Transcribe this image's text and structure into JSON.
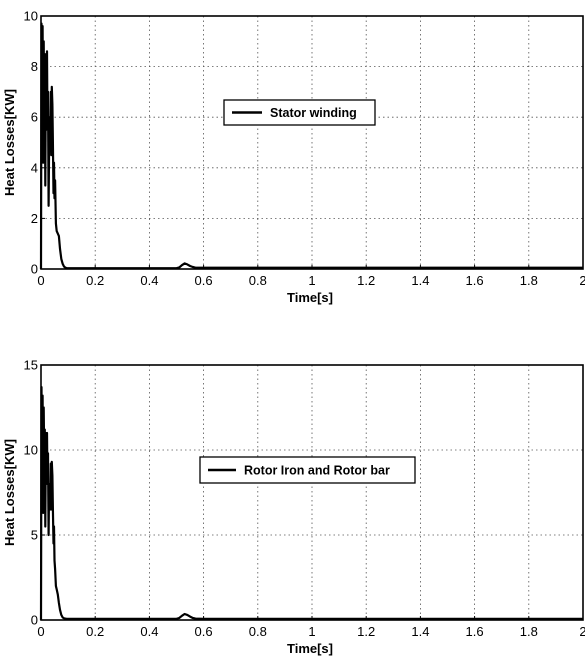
{
  "chart_data": [
    {
      "type": "line",
      "xlabel": "Time[s]",
      "ylabel": "Heat Losses[KW]",
      "xlim": [
        0,
        2
      ],
      "ylim": [
        0,
        10
      ],
      "xticks": [
        0,
        0.2,
        0.4,
        0.6,
        0.8,
        1,
        1.2,
        1.4,
        1.6,
        1.8,
        2
      ],
      "xtick_labels": [
        "0",
        "0.2",
        "0.4",
        "0.6",
        "0.8",
        "1",
        "1.2",
        "1.4",
        "1.6",
        "1.8",
        "2"
      ],
      "yticks": [
        0,
        2,
        4,
        6,
        8,
        10
      ],
      "ytick_labels": [
        "0",
        "2",
        "4",
        "6",
        "8",
        "10"
      ],
      "grid": true,
      "legend_position": "center",
      "series": [
        {
          "name": "Stator winding",
          "color": "#000000",
          "x": [
            0,
            0.002,
            0.004,
            0.006,
            0.008,
            0.01,
            0.012,
            0.014,
            0.016,
            0.018,
            0.02,
            0.022,
            0.024,
            0.026,
            0.028,
            0.03,
            0.032,
            0.034,
            0.036,
            0.038,
            0.04,
            0.042,
            0.044,
            0.046,
            0.048,
            0.05,
            0.052,
            0.055,
            0.058,
            0.062,
            0.066,
            0.07,
            0.075,
            0.08,
            0.085,
            0.09,
            0.095,
            0.1,
            0.2,
            0.4,
            0.5,
            0.51,
            0.52,
            0.53,
            0.54,
            0.55,
            0.56,
            0.57,
            0.6,
            0.8,
            1.0,
            1.2,
            1.4,
            1.6,
            1.8,
            2.0
          ],
          "y": [
            0,
            9.7,
            5,
            9.6,
            4.2,
            9.0,
            6,
            8.5,
            3.3,
            8.0,
            6.5,
            8.6,
            5.5,
            7.0,
            2.5,
            4.8,
            6.0,
            4.8,
            7.0,
            4.5,
            7.2,
            6.5,
            5.0,
            3.0,
            4.2,
            2.8,
            3.5,
            1.8,
            1.5,
            1.4,
            1.3,
            0.8,
            0.4,
            0.2,
            0.1,
            0.05,
            0.03,
            0.03,
            0.03,
            0.03,
            0.03,
            0.06,
            0.15,
            0.22,
            0.18,
            0.12,
            0.08,
            0.05,
            0.05,
            0.05,
            0.05,
            0.05,
            0.05,
            0.05,
            0.05,
            0.05
          ]
        }
      ]
    },
    {
      "type": "line",
      "xlabel": "Time[s]",
      "ylabel": "Heat Losses[KW]",
      "xlim": [
        0,
        2
      ],
      "ylim": [
        0,
        15
      ],
      "xticks": [
        0,
        0.2,
        0.4,
        0.6,
        0.8,
        1,
        1.2,
        1.4,
        1.6,
        1.8,
        2
      ],
      "xtick_labels": [
        "0",
        "0.2",
        "0.4",
        "0.6",
        "0.8",
        "1",
        "1.2",
        "1.4",
        "1.6",
        "1.8",
        "2"
      ],
      "yticks": [
        0,
        5,
        10,
        15
      ],
      "ytick_labels": [
        "0",
        "5",
        "10",
        "15"
      ],
      "grid": true,
      "legend_position": "center",
      "series": [
        {
          "name": "Rotor Iron and Rotor bar",
          "color": "#000000",
          "x": [
            0,
            0.002,
            0.004,
            0.006,
            0.008,
            0.01,
            0.012,
            0.014,
            0.016,
            0.018,
            0.02,
            0.022,
            0.024,
            0.026,
            0.028,
            0.03,
            0.032,
            0.034,
            0.036,
            0.038,
            0.04,
            0.042,
            0.044,
            0.046,
            0.048,
            0.05,
            0.052,
            0.055,
            0.058,
            0.062,
            0.066,
            0.07,
            0.075,
            0.08,
            0.085,
            0.09,
            0.095,
            0.1,
            0.2,
            0.4,
            0.5,
            0.51,
            0.52,
            0.53,
            0.54,
            0.55,
            0.56,
            0.57,
            0.6,
            0.8,
            1.0,
            1.2,
            1.4,
            1.6,
            1.8,
            2.0
          ],
          "y": [
            0,
            13.7,
            8,
            13.2,
            6.3,
            12.5,
            9,
            11.2,
            5.5,
            11.0,
            9.5,
            11.0,
            8,
            9.8,
            5,
            8.0,
            7.0,
            6.5,
            9.2,
            6.5,
            9.3,
            8.5,
            6.5,
            4.5,
            5.5,
            3.5,
            3.0,
            2.0,
            1.8,
            1.5,
            1.0,
            0.6,
            0.3,
            0.15,
            0.1,
            0.08,
            0.07,
            0.07,
            0.07,
            0.07,
            0.07,
            0.12,
            0.25,
            0.35,
            0.3,
            0.2,
            0.12,
            0.08,
            0.07,
            0.07,
            0.07,
            0.07,
            0.07,
            0.07,
            0.07,
            0.07
          ]
        }
      ]
    }
  ]
}
